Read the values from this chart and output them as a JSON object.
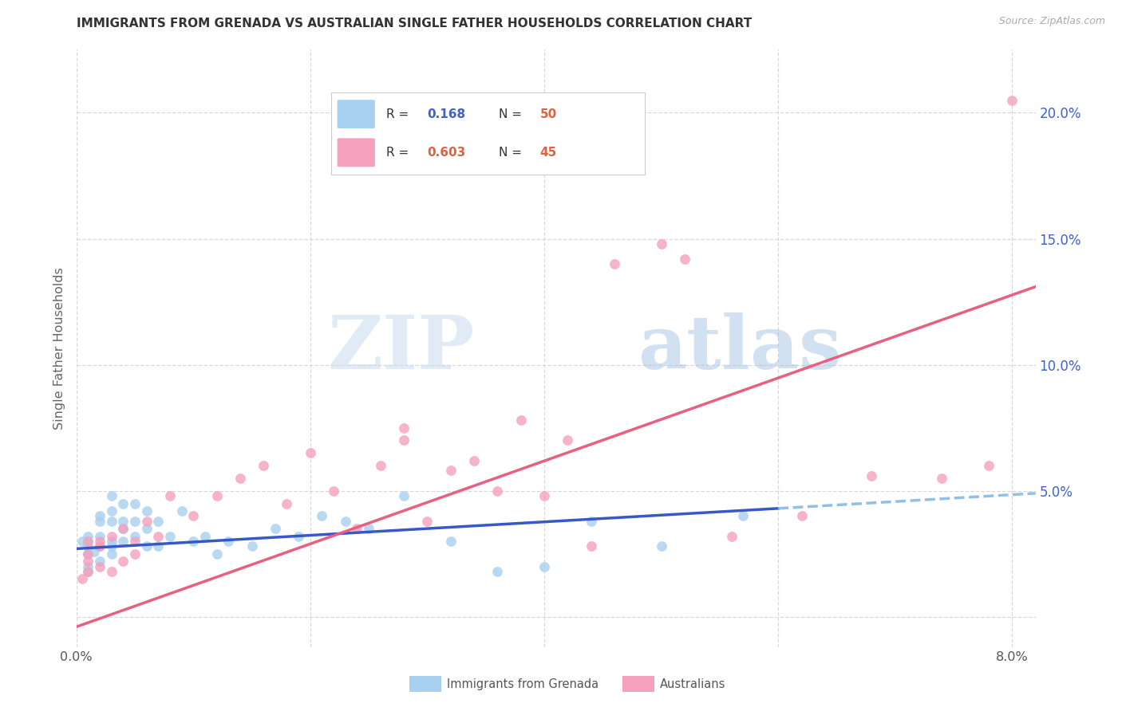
{
  "title": "IMMIGRANTS FROM GRENADA VS AUSTRALIAN SINGLE FATHER HOUSEHOLDS CORRELATION CHART",
  "source": "Source: ZipAtlas.com",
  "ylabel": "Single Father Households",
  "watermark_zip": "ZIP",
  "watermark_atlas": "atlas",
  "xlim": [
    0.0,
    0.082
  ],
  "ylim": [
    -0.012,
    0.225
  ],
  "xticks": [
    0.0,
    0.02,
    0.04,
    0.06,
    0.08
  ],
  "xtick_labels": [
    "0.0%",
    "",
    "",
    "",
    "8.0%"
  ],
  "ytick_positions": [
    0.0,
    0.05,
    0.1,
    0.15,
    0.2
  ],
  "ytick_labels": [
    "",
    "5.0%",
    "10.0%",
    "15.0%",
    "20.0%"
  ],
  "series1_color": "#A8D0F0",
  "series2_color": "#F5A0BC",
  "line1_color": "#3858C8",
  "line2_color": "#E86080",
  "line1_dashed_color": "#90C0E8",
  "background_color": "#ffffff",
  "grid_color": "#d8d8d8",
  "title_color": "#333333",
  "axis_label_color": "#666666",
  "right_ytick_color": "#4060CC",
  "legend_blue_val_color": "#4060CC",
  "legend_pink_val_color": "#E06040",
  "scatter1_x": [
    0.0005,
    0.001,
    0.001,
    0.001,
    0.001,
    0.001,
    0.001,
    0.0015,
    0.002,
    0.002,
    0.002,
    0.002,
    0.002,
    0.003,
    0.003,
    0.003,
    0.003,
    0.003,
    0.003,
    0.004,
    0.004,
    0.004,
    0.004,
    0.005,
    0.005,
    0.005,
    0.006,
    0.006,
    0.006,
    0.007,
    0.007,
    0.008,
    0.009,
    0.01,
    0.011,
    0.012,
    0.013,
    0.015,
    0.017,
    0.019,
    0.021,
    0.023,
    0.025,
    0.028,
    0.032,
    0.036,
    0.04,
    0.044,
    0.05,
    0.057
  ],
  "scatter1_y": [
    0.03,
    0.025,
    0.028,
    0.03,
    0.032,
    0.02,
    0.018,
    0.026,
    0.022,
    0.028,
    0.032,
    0.038,
    0.04,
    0.025,
    0.028,
    0.03,
    0.038,
    0.042,
    0.048,
    0.03,
    0.035,
    0.038,
    0.045,
    0.032,
    0.038,
    0.045,
    0.028,
    0.035,
    0.042,
    0.028,
    0.038,
    0.032,
    0.042,
    0.03,
    0.032,
    0.025,
    0.03,
    0.028,
    0.035,
    0.032,
    0.04,
    0.038,
    0.035,
    0.048,
    0.03,
    0.018,
    0.02,
    0.038,
    0.028,
    0.04
  ],
  "scatter2_x": [
    0.0005,
    0.001,
    0.001,
    0.001,
    0.001,
    0.002,
    0.002,
    0.002,
    0.003,
    0.003,
    0.004,
    0.004,
    0.005,
    0.005,
    0.006,
    0.007,
    0.008,
    0.01,
    0.012,
    0.014,
    0.016,
    0.018,
    0.02,
    0.022,
    0.024,
    0.026,
    0.028,
    0.028,
    0.03,
    0.032,
    0.034,
    0.036,
    0.038,
    0.04,
    0.042,
    0.044,
    0.046,
    0.05,
    0.052,
    0.056,
    0.062,
    0.068,
    0.074,
    0.078,
    0.08
  ],
  "scatter2_y": [
    0.015,
    0.018,
    0.022,
    0.025,
    0.03,
    0.02,
    0.028,
    0.03,
    0.018,
    0.032,
    0.022,
    0.035,
    0.025,
    0.03,
    0.038,
    0.032,
    0.048,
    0.04,
    0.048,
    0.055,
    0.06,
    0.045,
    0.065,
    0.05,
    0.035,
    0.06,
    0.07,
    0.075,
    0.038,
    0.058,
    0.062,
    0.05,
    0.078,
    0.048,
    0.07,
    0.028,
    0.14,
    0.148,
    0.142,
    0.032,
    0.04,
    0.056,
    0.055,
    0.06,
    0.205
  ],
  "line1_x0": 0.0,
  "line1_x1": 0.06,
  "line1_y0": 0.027,
  "line1_y1": 0.043,
  "line1d_x0": 0.06,
  "line1d_x1": 0.082,
  "line1d_y0": 0.043,
  "line1d_y1": 0.049,
  "line2_x0": 0.0,
  "line2_x1": 0.082,
  "line2_y0": -0.004,
  "line2_y1": 0.131
}
